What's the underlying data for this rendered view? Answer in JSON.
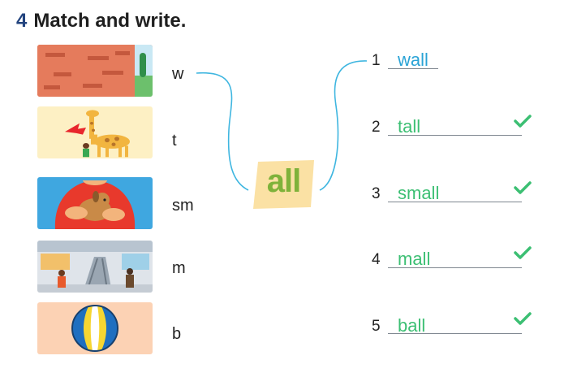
{
  "exercise": {
    "number": "4",
    "title": "Match and write."
  },
  "center_tag": {
    "text": "all",
    "fill": "#fbe1a4",
    "text_color": "#7fb23a"
  },
  "connector_color": "#3fb6e0",
  "items": [
    {
      "letter": "w",
      "picture_label": "brick wall"
    },
    {
      "letter": "t",
      "picture_label": "tall giraffe"
    },
    {
      "letter": "sm",
      "picture_label": "small puppy"
    },
    {
      "letter": "m",
      "picture_label": "shopping mall"
    },
    {
      "letter": "b",
      "picture_label": "beach ball"
    }
  ],
  "answers": [
    {
      "number": "1",
      "text": "wall",
      "checked": false
    },
    {
      "number": "2",
      "text": "tall",
      "checked": true
    },
    {
      "number": "3",
      "text": "small",
      "checked": true
    },
    {
      "number": "4",
      "text": "mall",
      "checked": true
    },
    {
      "number": "5",
      "text": "ball",
      "checked": true
    }
  ],
  "colors": {
    "example_answer": "#2aa3d6",
    "written_answer": "#3cbf73",
    "tick": "#3cbf73"
  }
}
